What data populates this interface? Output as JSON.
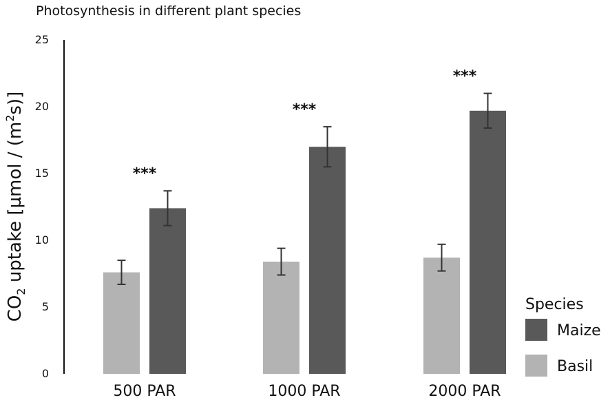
{
  "chart_data": {
    "type": "bar",
    "title": "Photosynthesis in different plant species",
    "ylabel": "CO₂ uptake [µmol / (m²s)]",
    "ylabel_parts": {
      "pre": "CO",
      "sub": "2",
      "mid": " uptake [µmol / (m",
      "sup": "2",
      "post": "s)]"
    },
    "xlabel": "",
    "ylim": [
      0,
      25
    ],
    "yticks": [
      0,
      5,
      10,
      15,
      20,
      25
    ],
    "grid": false,
    "categories": [
      "500 PAR",
      "1000 PAR",
      "2000 PAR"
    ],
    "series": [
      {
        "name": "Basil",
        "color": "#b3b3b3",
        "values": [
          7.6,
          8.4,
          8.7
        ],
        "errors": [
          0.9,
          1.0,
          1.0
        ]
      },
      {
        "name": "Maize",
        "color": "#595959",
        "values": [
          12.4,
          17.0,
          19.7
        ],
        "errors": [
          1.3,
          1.5,
          1.3
        ]
      }
    ],
    "annotations": [
      "***",
      "***",
      "***"
    ],
    "legend": {
      "title": "Species",
      "position": "bottom-right",
      "order": [
        "Maize",
        "Basil"
      ]
    }
  }
}
